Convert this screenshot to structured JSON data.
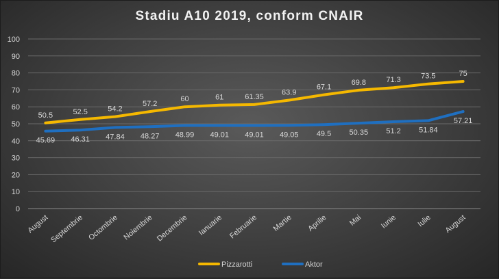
{
  "chart_data": {
    "type": "line",
    "title": "Stadiu A10 2019, conform CNAIR",
    "categories": [
      "August",
      "Septembrie",
      "Octombrie",
      "Noiembrie",
      "Decembrie",
      "Ianuarie",
      "Februarie",
      "Martie",
      "Aprilie",
      "Mai",
      "Iunie",
      "Iulie",
      "August"
    ],
    "ylim": [
      0,
      100
    ],
    "yticks": [
      0,
      10,
      20,
      30,
      40,
      50,
      60,
      70,
      80,
      90,
      100
    ],
    "grid": true,
    "legend_position": "bottom",
    "series": [
      {
        "name": "Pizzarotti",
        "color": "#f5b800",
        "values": [
          50.5,
          52.5,
          54.2,
          57.2,
          60,
          61,
          61.35,
          63.9,
          67.1,
          69.8,
          71.3,
          73.5,
          75
        ],
        "labels": [
          "50.5",
          "52.5",
          "54.2",
          "57.2",
          "60",
          "61",
          "61.35",
          "63.9",
          "67.1",
          "69.8",
          "71.3",
          "73.5",
          "75"
        ]
      },
      {
        "name": "Aktor",
        "color": "#1f6fc0",
        "values": [
          45.69,
          46.31,
          47.84,
          48.27,
          48.99,
          49.01,
          49.01,
          49.05,
          49.5,
          50.35,
          51.2,
          51.84,
          57.21
        ],
        "labels": [
          "45.69",
          "46.31",
          "47.84",
          "48.27",
          "48.99",
          "49.01",
          "49.01",
          "49.05",
          "49.5",
          "50.35",
          "51.2",
          "51.84",
          "57.21"
        ]
      }
    ]
  }
}
